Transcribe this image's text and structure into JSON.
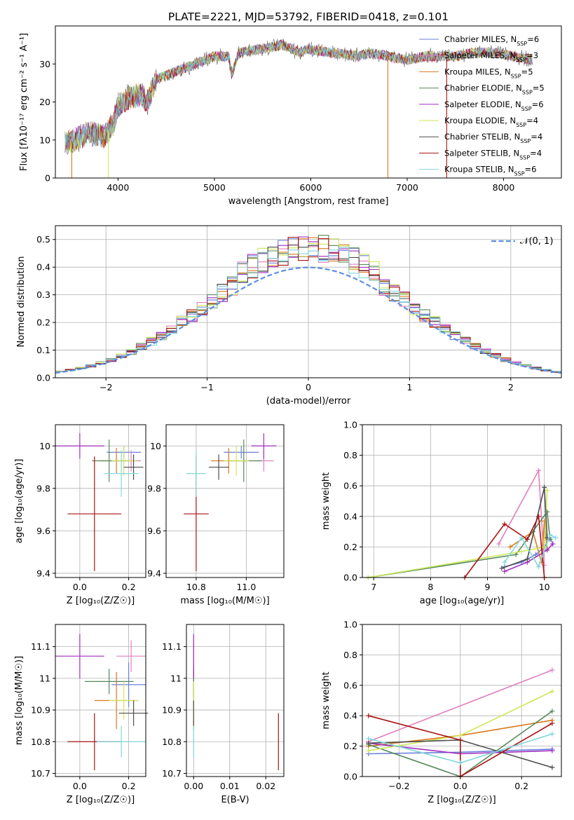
{
  "title": "PLATE=2221, MJD=53792, FIBERID=0418, z=0.101",
  "colors": [
    "#6a7fd8",
    "#e07fbf",
    "#d97a1c",
    "#55885a",
    "#a02fc0",
    "#cde85a",
    "#4d4d4d",
    "#a81313",
    "#80d8dc"
  ],
  "legend": [
    {
      "name": "Chabrier MILES",
      "nssp": "6"
    },
    {
      "name": "Salpeter MILES",
      "nssp": "3"
    },
    {
      "name": "Kroupa MILES",
      "nssp": "5"
    },
    {
      "name": "Chabrier ELODIE",
      "nssp": "5"
    },
    {
      "name": "Salpeter ELODIE",
      "nssp": "6"
    },
    {
      "name": "Kroupa ELODIE",
      "nssp": "4"
    },
    {
      "name": "Chabrier STELIB",
      "nssp": "4"
    },
    {
      "name": "Salpeter STELIB",
      "nssp": "4"
    },
    {
      "name": "Kroupa STELIB",
      "nssp": "6"
    }
  ],
  "chart_data": [
    {
      "id": "spectrum",
      "type": "line",
      "xlabel": "wavelength [Angstrom, rest frame]",
      "ylabel": "Flux [fλ10⁻¹⁷ erg cm⁻² s⁻¹ A⁻¹]",
      "xlim": [
        3350,
        8600
      ],
      "ylim": [
        0,
        40
      ],
      "xticks": [
        4000,
        5000,
        6000,
        7000,
        8000
      ],
      "yticks": [
        0,
        10,
        20,
        30
      ],
      "continuum": [
        [
          3450,
          9
        ],
        [
          3550,
          10
        ],
        [
          3700,
          12
        ],
        [
          3850,
          11
        ],
        [
          3950,
          14
        ],
        [
          4000,
          19
        ],
        [
          4100,
          21
        ],
        [
          4250,
          22
        ],
        [
          4300,
          20
        ],
        [
          4400,
          26
        ],
        [
          4600,
          28
        ],
        [
          4800,
          30
        ],
        [
          5000,
          32
        ],
        [
          5150,
          32
        ],
        [
          5180,
          27
        ],
        [
          5250,
          33
        ],
        [
          5500,
          34
        ],
        [
          5700,
          35
        ],
        [
          5890,
          33
        ],
        [
          5950,
          34
        ],
        [
          6200,
          33
        ],
        [
          6500,
          32
        ],
        [
          6600,
          33
        ],
        [
          6800,
          32
        ],
        [
          7000,
          31
        ],
        [
          7200,
          32
        ],
        [
          7500,
          32
        ],
        [
          7700,
          33
        ],
        [
          7900,
          33
        ],
        [
          8100,
          32
        ],
        [
          8300,
          31
        ]
      ]
    },
    {
      "id": "residuals",
      "type": "step-histogram",
      "xlabel": "(data-model)/error",
      "ylabel": "Normed distribution",
      "xlim": [
        -2.5,
        2.5
      ],
      "ylim": [
        0,
        0.55
      ],
      "xticks": [
        -2,
        -1,
        0,
        1,
        2
      ],
      "yticks": [
        0.0,
        0.1,
        0.2,
        0.3,
        0.4,
        0.5
      ],
      "bin_width": 0.1,
      "reference": {
        "label": "𝒩(0, 1)",
        "mu": 0,
        "sigma": 1
      }
    },
    {
      "id": "Z-age",
      "type": "errorbar",
      "xlabel": "Z [log₁₀(Z/Z☉)]",
      "ylabel": "age  [log₁₀(age/yr)]",
      "xlim": [
        -0.1,
        0.27
      ],
      "ylim": [
        9.38,
        10.1
      ],
      "xticks": [
        0.0,
        0.2
      ],
      "xtick_labels": [
        "0.0",
        "0.2"
      ],
      "yticks": [
        9.4,
        9.6,
        9.8,
        10.0
      ],
      "points": [
        [
          0.18,
          9.97,
          0.07,
          0.03
        ],
        [
          0.21,
          9.93,
          0.04,
          0.05
        ],
        [
          0.15,
          9.93,
          0.07,
          0.06
        ],
        [
          0.12,
          9.93,
          0.07,
          0.1
        ],
        [
          0.0,
          10.0,
          0.1,
          0.06
        ],
        [
          0.18,
          9.93,
          0.05,
          0.07
        ],
        [
          0.22,
          9.9,
          0.04,
          0.06
        ],
        [
          0.06,
          9.68,
          0.11,
          0.27
        ],
        [
          0.17,
          9.87,
          0.07,
          0.11
        ]
      ]
    },
    {
      "id": "mass-age",
      "type": "errorbar",
      "xlabel": "mass [log₁₀(M/M☉)]",
      "ylabel": "",
      "xlim": [
        10.68,
        11.15
      ],
      "ylim": [
        9.38,
        10.1
      ],
      "xticks": [
        10.8,
        11.0
      ],
      "xtick_labels": [
        "10.8",
        "11.0"
      ],
      "yticks": [
        9.4,
        9.6,
        9.8,
        10.0
      ],
      "points": [
        [
          10.98,
          9.97,
          0.07,
          0.03
        ],
        [
          11.07,
          9.93,
          0.04,
          0.05
        ],
        [
          10.93,
          9.93,
          0.07,
          0.06
        ],
        [
          10.99,
          9.93,
          0.07,
          0.1
        ],
        [
          11.07,
          10.0,
          0.05,
          0.06
        ],
        [
          10.96,
          9.93,
          0.05,
          0.07
        ],
        [
          10.89,
          9.9,
          0.04,
          0.06
        ],
        [
          10.8,
          9.68,
          0.05,
          0.27
        ],
        [
          10.8,
          9.87,
          0.04,
          0.11
        ]
      ]
    },
    {
      "id": "age-weight",
      "type": "line",
      "xlabel": "age  [log₁₀(age/yr)]",
      "ylabel": "mass weight",
      "xlim": [
        6.8,
        10.3
      ],
      "ylim": [
        0,
        1
      ],
      "xticks": [
        7,
        8,
        9,
        10
      ],
      "yticks": [
        0.0,
        0.2,
        0.4,
        0.6,
        0.8,
        1.0
      ],
      "series": [
        [
          [
            9.3,
            0.07
          ],
          [
            9.6,
            0.1
          ],
          [
            9.85,
            0.15
          ],
          [
            10.0,
            0.2
          ],
          [
            10.1,
            0.26
          ],
          [
            10.15,
            0.22
          ]
        ],
        [
          [
            9.2,
            0.22
          ],
          [
            9.9,
            0.7
          ],
          [
            10.0,
            0.08
          ]
        ],
        [
          [
            9.4,
            0.2
          ],
          [
            9.8,
            0.3
          ],
          [
            9.95,
            0.1
          ],
          [
            10.0,
            0.37
          ],
          [
            10.05,
            0.18
          ]
        ],
        [
          [
            6.9,
            0.0
          ],
          [
            9.5,
            0.15
          ],
          [
            10.05,
            0.43
          ],
          [
            10.1,
            0.25
          ]
        ],
        [
          [
            9.3,
            0.04
          ],
          [
            9.7,
            0.1
          ],
          [
            10.05,
            0.18
          ],
          [
            10.15,
            0.22
          ]
        ],
        [
          [
            6.9,
            0.0
          ],
          [
            9.6,
            0.17
          ],
          [
            10.0,
            0.2
          ],
          [
            10.05,
            0.57
          ]
        ],
        [
          [
            9.25,
            0.06
          ],
          [
            9.7,
            0.12
          ],
          [
            10.0,
            0.59
          ],
          [
            10.05,
            0.26
          ]
        ],
        [
          [
            8.6,
            0.0
          ],
          [
            9.3,
            0.35
          ],
          [
            9.7,
            0.25
          ],
          [
            9.9,
            0.4
          ],
          [
            10.0,
            0.0
          ]
        ],
        [
          [
            9.3,
            0.1
          ],
          [
            9.6,
            0.26
          ],
          [
            9.9,
            0.07
          ],
          [
            10.1,
            0.28
          ],
          [
            10.2,
            0.26
          ]
        ]
      ]
    },
    {
      "id": "Z-mass",
      "type": "errorbar",
      "xlabel": "Z [log₁₀(Z/Z☉)]",
      "ylabel": "mass [log₁₀(M/M☉)]",
      "xlim": [
        -0.1,
        0.27
      ],
      "ylim": [
        10.69,
        11.17
      ],
      "xticks": [
        0.0,
        0.2
      ],
      "xtick_labels": [
        "0.0",
        "0.2"
      ],
      "yticks": [
        10.7,
        10.8,
        10.9,
        11.0,
        11.1
      ],
      "points": [
        [
          0.2,
          10.98,
          0.07,
          0.07
        ],
        [
          0.21,
          11.07,
          0.06,
          0.05
        ],
        [
          0.15,
          10.93,
          0.09,
          0.09
        ],
        [
          0.12,
          10.99,
          0.1,
          0.04
        ],
        [
          0.0,
          11.07,
          0.1,
          0.07
        ],
        [
          0.18,
          10.93,
          0.06,
          0.06
        ],
        [
          0.22,
          10.89,
          0.06,
          0.04
        ],
        [
          0.06,
          10.8,
          0.11,
          0.09
        ],
        [
          0.17,
          10.8,
          0.1,
          0.05
        ]
      ]
    },
    {
      "id": "EBV-mass",
      "type": "errorbar",
      "xlabel": "E(B-V)",
      "ylabel": "",
      "xlim": [
        -0.002,
        0.025
      ],
      "ylim": [
        10.69,
        11.17
      ],
      "xticks": [
        0.0,
        0.01,
        0.02
      ],
      "xtick_labels": [
        "0.00",
        "0.01",
        "0.02"
      ],
      "yticks": [
        10.7,
        10.8,
        10.9,
        11.0,
        11.1
      ],
      "points": [
        [
          0.0,
          10.98,
          0.0,
          0.07
        ],
        [
          0.0,
          11.07,
          0.0,
          0.05
        ],
        [
          0.0,
          10.93,
          0.0,
          0.09
        ],
        [
          0.0,
          10.99,
          0.0,
          0.04
        ],
        [
          0.0,
          11.07,
          0.0,
          0.07
        ],
        [
          0.0,
          10.93,
          0.0,
          0.06
        ],
        [
          0.0,
          10.89,
          0.0,
          0.04
        ],
        [
          0.0235,
          10.8,
          0.0,
          0.09
        ],
        [
          0.0,
          10.8,
          0.0,
          0.05
        ]
      ]
    },
    {
      "id": "Z-weight",
      "type": "line",
      "xlabel": "Z [log₁₀(Z/Z☉)]",
      "ylabel": "mass weight",
      "xlim": [
        -0.32,
        0.33
      ],
      "ylim": [
        0,
        1
      ],
      "xticks": [
        -0.2,
        0.0,
        0.2
      ],
      "xtick_labels": [
        "−0.2",
        "0.0",
        "0.2"
      ],
      "yticks": [
        0.0,
        0.2,
        0.4,
        0.6,
        0.8,
        1.0
      ],
      "series": [
        [
          [
            -0.3,
            0.15
          ],
          [
            0.0,
            0.16
          ],
          [
            0.3,
            0.18
          ]
        ],
        [
          [
            -0.3,
            0.23
          ],
          [
            0.3,
            0.7
          ]
        ],
        [
          [
            -0.3,
            0.2
          ],
          [
            0.0,
            0.27
          ],
          [
            0.3,
            0.37
          ]
        ],
        [
          [
            -0.3,
            0.21
          ],
          [
            0.0,
            0.0
          ],
          [
            0.3,
            0.43
          ]
        ],
        [
          [
            -0.3,
            0.22
          ],
          [
            0.0,
            0.15
          ],
          [
            0.3,
            0.17
          ]
        ],
        [
          [
            -0.3,
            0.17
          ],
          [
            0.0,
            0.27
          ],
          [
            0.3,
            0.56
          ]
        ],
        [
          [
            -0.3,
            0.22
          ],
          [
            0.0,
            0.24
          ],
          [
            0.3,
            0.06
          ]
        ],
        [
          [
            -0.3,
            0.4
          ],
          [
            0.0,
            0.24
          ],
          [
            0.0,
            0.0
          ],
          [
            0.3,
            0.35
          ]
        ],
        [
          [
            -0.3,
            0.25
          ],
          [
            0.0,
            0.09
          ],
          [
            0.3,
            0.28
          ]
        ]
      ]
    }
  ]
}
